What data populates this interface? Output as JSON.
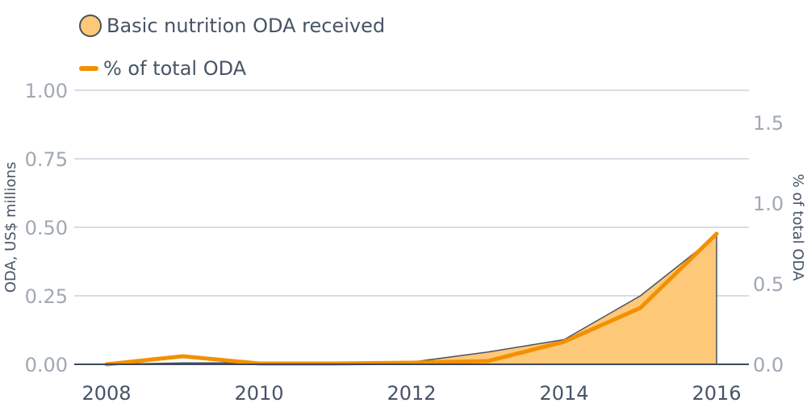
{
  "chart_data": {
    "type": "area",
    "x": [
      2008,
      2009,
      2010,
      2011,
      2012,
      2013,
      2014,
      2015,
      2016
    ],
    "x_ticks": [
      "2008",
      "2010",
      "2012",
      "2014",
      "2016"
    ],
    "series": [
      {
        "name": "Basic nutrition ODA received",
        "type": "area",
        "axis": "left",
        "values": [
          0.0,
          0.005,
          0.005,
          0.005,
          0.008,
          0.045,
          0.09,
          0.25,
          0.47
        ]
      },
      {
        "name": "% of total ODA",
        "type": "line",
        "axis": "right",
        "values": [
          0.0,
          0.05,
          0.005,
          0.005,
          0.01,
          0.02,
          0.14,
          0.35,
          0.81
        ]
      }
    ],
    "ylabel": "ODA, US$ millions",
    "y2label": "% of total ODA",
    "ylim": [
      0,
      1.0
    ],
    "y_ticks": [
      "0.00",
      "0.25",
      "0.50",
      "0.75",
      "1.00"
    ],
    "y2lim": [
      0,
      1.7
    ],
    "y2_ticks": [
      "0.0",
      "0.5",
      "1.0",
      "1.5"
    ],
    "grid": true,
    "legend_position": "top-left"
  },
  "colors": {
    "area_fill": "#fdc878",
    "area_stroke": "#4a5360",
    "line": "#f39000",
    "grid": "#b3b8c8",
    "baseline": "#3e4a5a"
  }
}
